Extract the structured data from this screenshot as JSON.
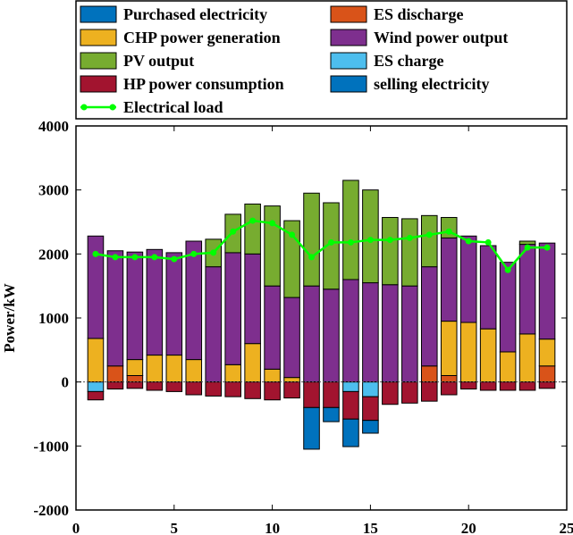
{
  "chart_data": {
    "type": "bar",
    "stacked": true,
    "ylabel": "Power/kW",
    "xlabel": "",
    "xlim": [
      0,
      25
    ],
    "ylim": [
      -2000,
      4000
    ],
    "xticks": [
      0,
      5,
      10,
      15,
      20,
      25
    ],
    "yticks": [
      -2000,
      -1000,
      0,
      1000,
      2000,
      3000,
      4000
    ],
    "grid": false,
    "legend_position": "top",
    "x": [
      1,
      2,
      3,
      4,
      5,
      6,
      7,
      8,
      9,
      10,
      11,
      12,
      13,
      14,
      15,
      16,
      17,
      18,
      19,
      20,
      21,
      22,
      23,
      24
    ],
    "series": [
      {
        "name": "Purchased electricity",
        "color": "#0072BD",
        "sign": "positive",
        "values": [
          0,
          0,
          0,
          0,
          0,
          0,
          0,
          0,
          0,
          0,
          0,
          0,
          0,
          0,
          0,
          0,
          0,
          0,
          0,
          0,
          0,
          0,
          0,
          0
        ]
      },
      {
        "name": "ES discharge",
        "color": "#D95319",
        "sign": "positive",
        "values": [
          0,
          250,
          100,
          0,
          0,
          0,
          0,
          0,
          0,
          0,
          0,
          0,
          0,
          0,
          0,
          0,
          0,
          250,
          100,
          0,
          0,
          0,
          0,
          250
        ]
      },
      {
        "name": "CHP power generation",
        "color": "#EDB120",
        "sign": "positive",
        "values": [
          680,
          0,
          250,
          420,
          420,
          350,
          0,
          270,
          600,
          200,
          70,
          0,
          0,
          0,
          0,
          0,
          0,
          0,
          850,
          930,
          830,
          470,
          750,
          420
        ]
      },
      {
        "name": "Wind power output",
        "color": "#7E2F8E",
        "sign": "positive",
        "values": [
          1600,
          1800,
          1680,
          1650,
          1600,
          1850,
          1800,
          1750,
          1400,
          1300,
          1250,
          1500,
          1450,
          1600,
          1550,
          1520,
          1500,
          1550,
          1300,
          1350,
          1300,
          1400,
          1400,
          1500
        ]
      },
      {
        "name": "PV output",
        "color": "#77AC30",
        "sign": "positive",
        "values": [
          0,
          0,
          0,
          0,
          0,
          0,
          430,
          600,
          780,
          1250,
          1200,
          1450,
          1350,
          1550,
          1450,
          1050,
          1050,
          800,
          320,
          0,
          0,
          0,
          50,
          0
        ]
      },
      {
        "name": "ES charge",
        "color": "#4DBEEE",
        "sign": "negative",
        "values": [
          -150,
          0,
          0,
          0,
          0,
          0,
          0,
          0,
          0,
          0,
          0,
          0,
          0,
          -150,
          -230,
          0,
          0,
          0,
          0,
          0,
          0,
          0,
          0,
          0
        ]
      },
      {
        "name": "HP power consumption",
        "color": "#A2142F",
        "sign": "negative",
        "values": [
          -130,
          -110,
          -100,
          -130,
          -150,
          -200,
          -220,
          -230,
          -260,
          -280,
          -250,
          -400,
          -400,
          -430,
          -370,
          -350,
          -330,
          -300,
          -200,
          -110,
          -130,
          -130,
          -130,
          -100
        ]
      },
      {
        "name": "selling electricity",
        "color": "#0072BD",
        "sign": "negative",
        "values": [
          0,
          0,
          0,
          0,
          0,
          0,
          0,
          0,
          0,
          0,
          0,
          -650,
          -220,
          -430,
          -200,
          0,
          0,
          0,
          0,
          0,
          0,
          0,
          0,
          0
        ]
      },
      {
        "name": "Electrical load",
        "color": "#00FF00",
        "type": "line",
        "marker": "circle",
        "values": [
          2000,
          1950,
          1950,
          1950,
          1920,
          2000,
          2020,
          2350,
          2520,
          2480,
          2300,
          1950,
          2180,
          2180,
          2220,
          2220,
          2250,
          2300,
          2350,
          2200,
          2180,
          1750,
          2100,
          2100
        ]
      }
    ]
  }
}
